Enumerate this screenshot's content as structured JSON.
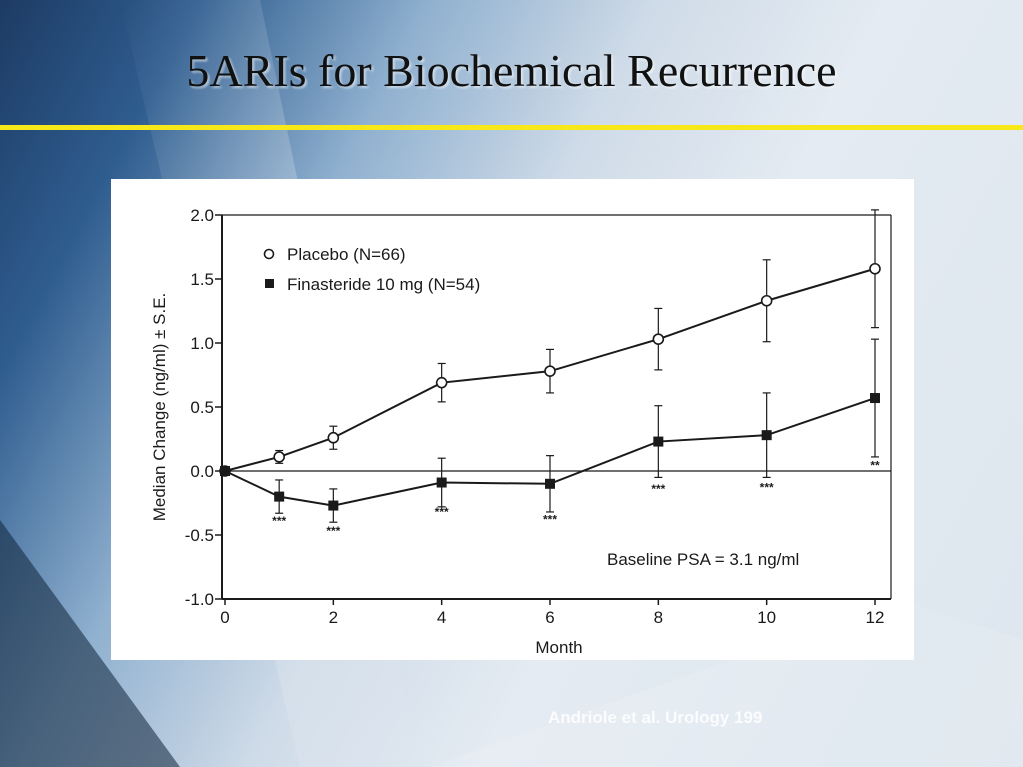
{
  "slide": {
    "title": "5ARIs for Biochemical Recurrence",
    "citation": "Andriole et al. Urology 199"
  },
  "colors": {
    "title_rule": "#f7e81a",
    "chart_background": "#ffffff",
    "ink": "#1a1a1a"
  },
  "chart_data": {
    "type": "line",
    "title": "",
    "xlabel": "Month",
    "ylabel": "Median Change (ng/ml) ± S.E.",
    "xlim": [
      0,
      12
    ],
    "ylim": [
      -1.0,
      2.0
    ],
    "x_ticks": [
      0,
      2,
      4,
      6,
      8,
      10,
      12
    ],
    "y_ticks": [
      2.0,
      1.5,
      1.0,
      0.5,
      0.0,
      -0.5,
      -1.0
    ],
    "y_tick_labels": [
      "2.0",
      "1.5",
      "1.0",
      "0.5",
      "0.0",
      "-0.5",
      "-1.0"
    ],
    "reference_line": 0,
    "legend_position": "top-left",
    "annotation": "Baseline PSA = 3.1 ng/ml",
    "series": [
      {
        "name": "Placebo (N=66)",
        "marker": "open-circle",
        "x": [
          0,
          1,
          2,
          4,
          6,
          8,
          10,
          12
        ],
        "y": [
          0.0,
          0.11,
          0.26,
          0.69,
          0.78,
          1.03,
          1.33,
          1.58
        ],
        "se": [
          0.02,
          0.05,
          0.09,
          0.15,
          0.17,
          0.24,
          0.32,
          0.46
        ]
      },
      {
        "name": "Finasteride 10 mg (N=54)",
        "marker": "filled-square",
        "x": [
          0,
          1,
          2,
          4,
          6,
          8,
          10,
          12
        ],
        "y": [
          0.0,
          -0.2,
          -0.27,
          -0.09,
          -0.1,
          0.23,
          0.28,
          0.57
        ],
        "se": [
          0.02,
          0.13,
          0.13,
          0.19,
          0.22,
          0.28,
          0.33,
          0.46
        ]
      }
    ],
    "significance": [
      {
        "x": 1,
        "y": -0.42,
        "label": "***"
      },
      {
        "x": 2,
        "y": -0.5,
        "label": "***"
      },
      {
        "x": 4,
        "y": -0.35,
        "label": "***"
      },
      {
        "x": 6,
        "y": -0.41,
        "label": "***"
      },
      {
        "x": 8,
        "y": -0.17,
        "label": "***"
      },
      {
        "x": 10,
        "y": -0.16,
        "label": "***"
      },
      {
        "x": 12,
        "y": 0.01,
        "label": "**"
      }
    ]
  }
}
